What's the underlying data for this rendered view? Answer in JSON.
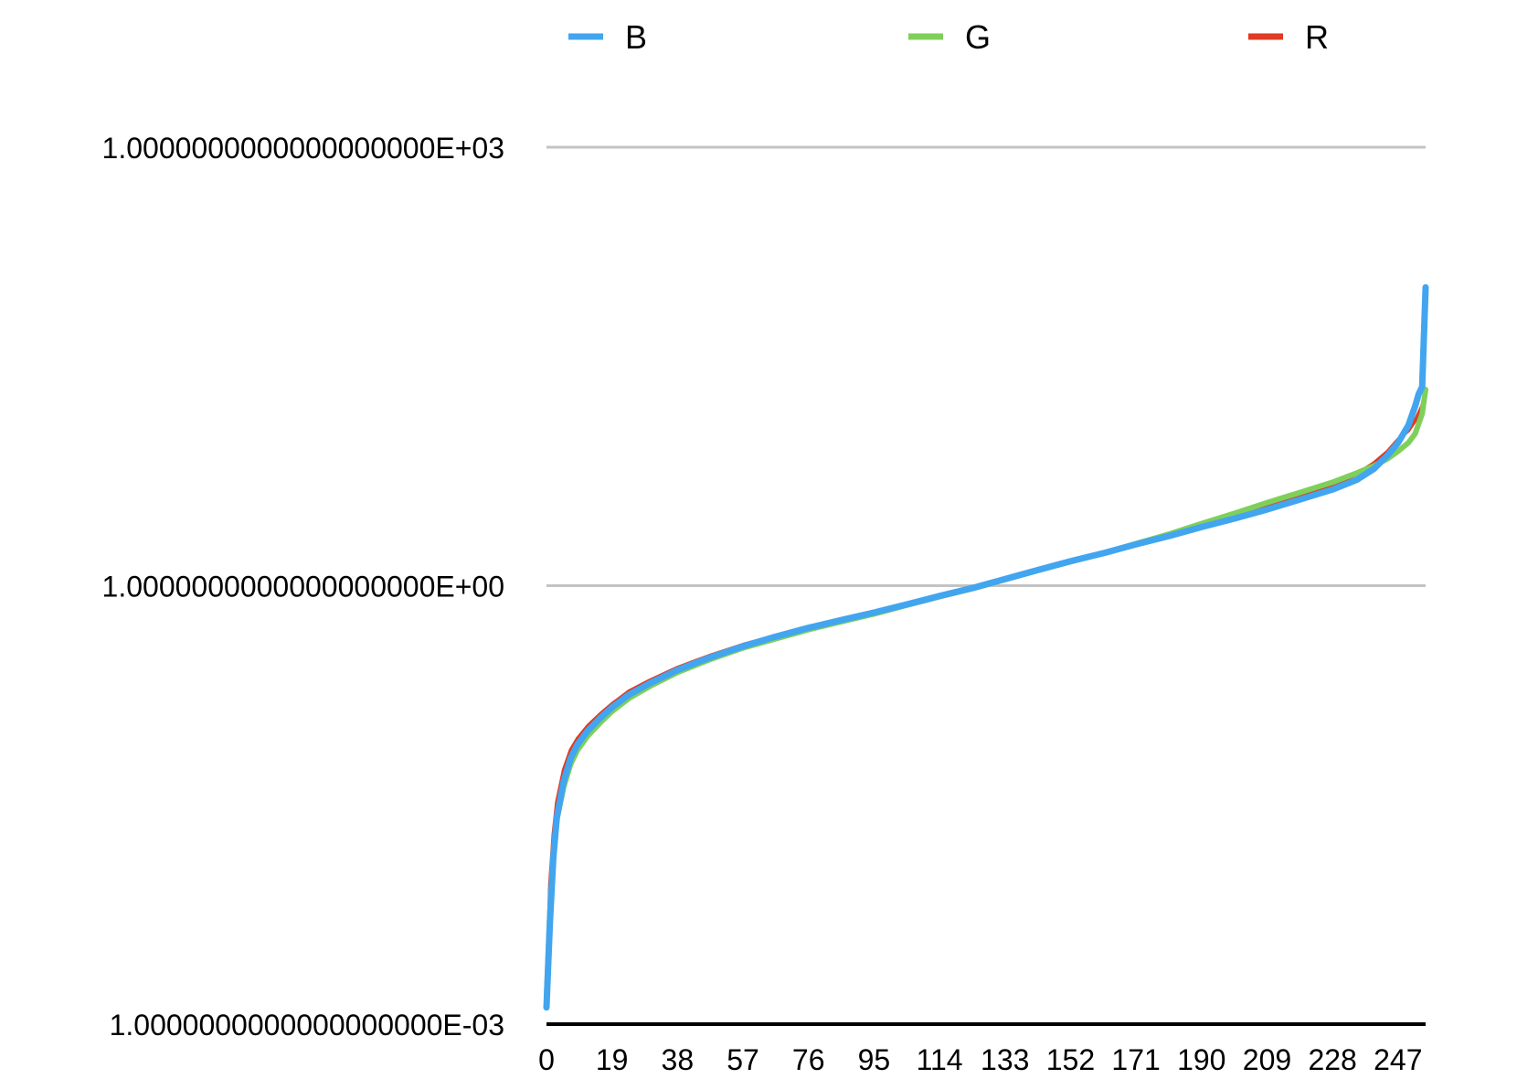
{
  "chart_data": {
    "type": "line",
    "title": "",
    "xlabel": "",
    "ylabel": "",
    "x_tick_labels": [
      "0",
      "19",
      "38",
      "57",
      "76",
      "95",
      "114",
      "133",
      "152",
      "171",
      "190",
      "209",
      "228",
      "247"
    ],
    "y_scale": "log",
    "y_tick_labels": [
      "1.0000000000000000000E-03",
      "1.0000000000000000000E+00",
      "1.0000000000000000000E+03"
    ],
    "y_tick_values": [
      0.001,
      1,
      1000
    ],
    "xlim": [
      0,
      255
    ],
    "ylim": [
      0.001,
      1000
    ],
    "grid": true,
    "legend": {
      "position": "top",
      "entries": [
        {
          "label": "B",
          "color": "#42a5ef"
        },
        {
          "label": "G",
          "color": "#7fd05a"
        },
        {
          "label": "R",
          "color": "#e03b24"
        }
      ]
    },
    "series": [
      {
        "name": "R",
        "color": "#e03b24",
        "points": [
          [
            0,
            0.0015
          ],
          [
            1,
            0.009
          ],
          [
            2,
            0.02
          ],
          [
            3,
            0.033
          ],
          [
            5,
            0.055
          ],
          [
            7,
            0.075
          ],
          [
            9,
            0.09
          ],
          [
            12,
            0.11
          ],
          [
            16,
            0.135
          ],
          [
            19,
            0.155
          ],
          [
            24,
            0.19
          ],
          [
            30,
            0.225
          ],
          [
            38,
            0.275
          ],
          [
            47,
            0.33
          ],
          [
            57,
            0.395
          ],
          [
            66,
            0.45
          ],
          [
            76,
            0.52
          ],
          [
            86,
            0.59
          ],
          [
            95,
            0.66
          ],
          [
            105,
            0.76
          ],
          [
            114,
            0.86
          ],
          [
            124,
            0.97
          ],
          [
            133,
            1.12
          ],
          [
            143,
            1.3
          ],
          [
            152,
            1.48
          ],
          [
            162,
            1.7
          ],
          [
            171,
            1.95
          ],
          [
            181,
            2.25
          ],
          [
            190,
            2.6
          ],
          [
            200,
            3.0
          ],
          [
            209,
            3.45
          ],
          [
            218,
            4.0
          ],
          [
            228,
            4.85
          ],
          [
            235,
            5.8
          ],
          [
            240,
            6.9
          ],
          [
            244,
            8.3
          ],
          [
            247,
            10.0
          ],
          [
            250,
            11.5
          ],
          [
            252,
            13.5
          ],
          [
            254,
            17.0
          ],
          [
            255,
            22.0
          ]
        ]
      },
      {
        "name": "G",
        "color": "#7fd05a",
        "points": [
          [
            0,
            0.0015
          ],
          [
            1,
            0.006
          ],
          [
            2,
            0.015
          ],
          [
            3,
            0.025
          ],
          [
            5,
            0.042
          ],
          [
            7,
            0.06
          ],
          [
            9,
            0.075
          ],
          [
            12,
            0.094
          ],
          [
            16,
            0.118
          ],
          [
            19,
            0.138
          ],
          [
            24,
            0.17
          ],
          [
            30,
            0.205
          ],
          [
            38,
            0.255
          ],
          [
            47,
            0.31
          ],
          [
            57,
            0.375
          ],
          [
            66,
            0.43
          ],
          [
            76,
            0.5
          ],
          [
            86,
            0.57
          ],
          [
            95,
            0.64
          ],
          [
            105,
            0.74
          ],
          [
            114,
            0.84
          ],
          [
            124,
            0.96
          ],
          [
            133,
            1.1
          ],
          [
            143,
            1.28
          ],
          [
            152,
            1.46
          ],
          [
            162,
            1.68
          ],
          [
            171,
            1.94
          ],
          [
            181,
            2.27
          ],
          [
            190,
            2.66
          ],
          [
            200,
            3.15
          ],
          [
            209,
            3.7
          ],
          [
            218,
            4.3
          ],
          [
            228,
            5.1
          ],
          [
            235,
            5.9
          ],
          [
            240,
            6.6
          ],
          [
            244,
            7.4
          ],
          [
            247,
            8.3
          ],
          [
            250,
            9.5
          ],
          [
            252,
            11.0
          ],
          [
            254,
            15.0
          ],
          [
            255,
            22.0
          ]
        ]
      },
      {
        "name": "B",
        "color": "#42a5ef",
        "points": [
          [
            0,
            0.0013
          ],
          [
            1,
            0.005
          ],
          [
            2,
            0.014
          ],
          [
            3,
            0.026
          ],
          [
            5,
            0.046
          ],
          [
            7,
            0.066
          ],
          [
            9,
            0.082
          ],
          [
            12,
            0.102
          ],
          [
            16,
            0.127
          ],
          [
            19,
            0.147
          ],
          [
            24,
            0.18
          ],
          [
            30,
            0.215
          ],
          [
            38,
            0.265
          ],
          [
            47,
            0.32
          ],
          [
            57,
            0.385
          ],
          [
            66,
            0.445
          ],
          [
            76,
            0.515
          ],
          [
            86,
            0.585
          ],
          [
            95,
            0.655
          ],
          [
            105,
            0.75
          ],
          [
            114,
            0.85
          ],
          [
            124,
            0.97
          ],
          [
            133,
            1.11
          ],
          [
            143,
            1.29
          ],
          [
            152,
            1.47
          ],
          [
            162,
            1.68
          ],
          [
            171,
            1.92
          ],
          [
            181,
            2.2
          ],
          [
            190,
            2.52
          ],
          [
            200,
            2.9
          ],
          [
            209,
            3.32
          ],
          [
            218,
            3.85
          ],
          [
            228,
            4.55
          ],
          [
            235,
            5.3
          ],
          [
            240,
            6.3
          ],
          [
            244,
            7.8
          ],
          [
            247,
            9.5
          ],
          [
            250,
            12.5
          ],
          [
            252,
            17.0
          ],
          [
            253,
            20.5
          ],
          [
            254,
            23.0
          ],
          [
            255,
            110.0
          ]
        ]
      }
    ]
  }
}
